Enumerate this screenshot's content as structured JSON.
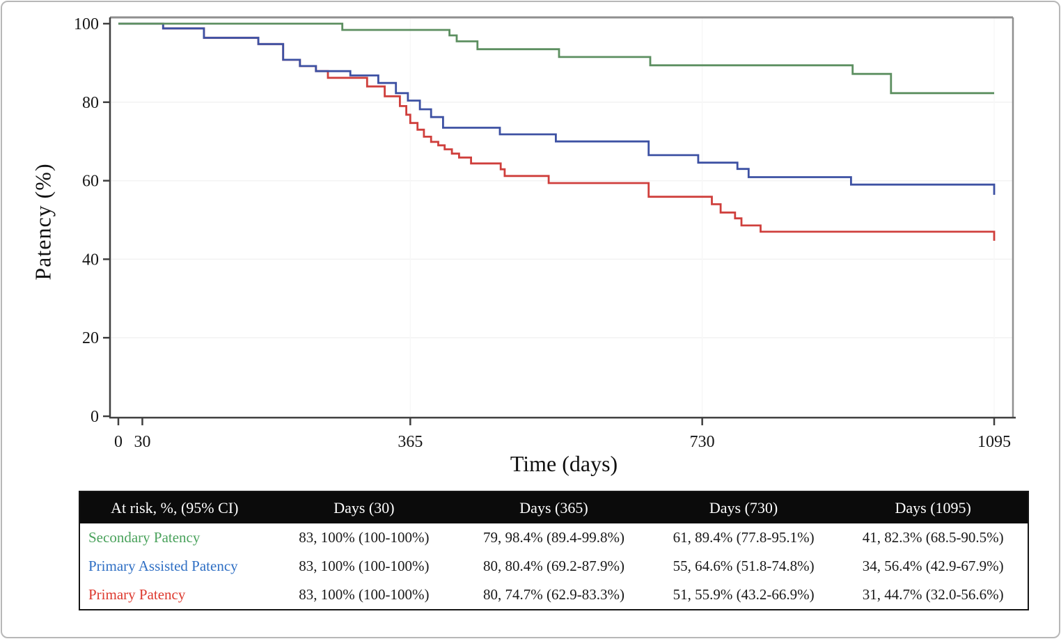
{
  "chart_data": {
    "type": "line",
    "subtype": "kaplan-meier-step",
    "title": "",
    "xlabel": "Time (days)",
    "ylabel": "Patency (%)",
    "xlim": [
      0,
      1095
    ],
    "ylim": [
      0,
      100
    ],
    "x_ticks": [
      0,
      30,
      365,
      730,
      1095
    ],
    "y_ticks": [
      0,
      20,
      40,
      60,
      80,
      100
    ],
    "grid": "none",
    "legend_position": "in-risk-table-below",
    "series": [
      {
        "name": "Secondary Patency",
        "color": "#5c8f60",
        "points": [
          [
            0,
            100
          ],
          [
            280,
            98.4
          ],
          [
            414,
            97.0
          ],
          [
            423,
            95.5
          ],
          [
            449,
            93.5
          ],
          [
            551,
            91.5
          ],
          [
            665,
            89.4
          ],
          [
            918,
            87.2
          ],
          [
            966,
            82.3
          ],
          [
            1095,
            82.3
          ]
        ]
      },
      {
        "name": "Primary Assisted Patency",
        "color": "#3d51a3",
        "points": [
          [
            0,
            100
          ],
          [
            56,
            98.8
          ],
          [
            107,
            96.4
          ],
          [
            175,
            94.8
          ],
          [
            206,
            90.8
          ],
          [
            227,
            89.2
          ],
          [
            247,
            87.9
          ],
          [
            290,
            86.8
          ],
          [
            325,
            84.9
          ],
          [
            347,
            82.3
          ],
          [
            362,
            80.4
          ],
          [
            377,
            78.2
          ],
          [
            391,
            76.2
          ],
          [
            406,
            73.5
          ],
          [
            477,
            71.8
          ],
          [
            547,
            70.0
          ],
          [
            663,
            66.5
          ],
          [
            725,
            64.6
          ],
          [
            774,
            63.0
          ],
          [
            788,
            60.9
          ],
          [
            916,
            59.0
          ],
          [
            1095,
            56.4
          ]
        ]
      },
      {
        "name": "Primary Patency",
        "color": "#cf3f3c",
        "points": [
          [
            0,
            100
          ],
          [
            56,
            98.8
          ],
          [
            107,
            96.4
          ],
          [
            175,
            94.8
          ],
          [
            206,
            90.8
          ],
          [
            227,
            89.2
          ],
          [
            247,
            87.9
          ],
          [
            262,
            86.2
          ],
          [
            311,
            84.0
          ],
          [
            333,
            81.5
          ],
          [
            352,
            79.0
          ],
          [
            360,
            76.8
          ],
          [
            365,
            74.7
          ],
          [
            374,
            73.0
          ],
          [
            382,
            71.2
          ],
          [
            391,
            69.9
          ],
          [
            400,
            69.0
          ],
          [
            408,
            68.0
          ],
          [
            417,
            66.9
          ],
          [
            426,
            65.9
          ],
          [
            441,
            64.4
          ],
          [
            478,
            62.9
          ],
          [
            483,
            61.2
          ],
          [
            538,
            59.4
          ],
          [
            663,
            55.9
          ],
          [
            742,
            54.0
          ],
          [
            753,
            51.9
          ],
          [
            771,
            50.4
          ],
          [
            779,
            48.6
          ],
          [
            803,
            47.0
          ],
          [
            1095,
            44.7
          ]
        ]
      }
    ]
  },
  "risk_table": {
    "header": [
      "At risk, %, (95% CI)",
      "Days (30)",
      "Days (365)",
      "Days (730)",
      "Days (1095)"
    ],
    "rows": [
      {
        "label": "Secondary Patency",
        "label_color": "#4aa25c",
        "values": [
          "83, 100% (100-100%)",
          "79, 98.4% (89.4-99.8%)",
          "61, 89.4% (77.8-95.1%)",
          "41, 82.3% (68.5-90.5%)"
        ]
      },
      {
        "label": "Primary Assisted Patency",
        "label_color": "#2f6fc4",
        "values": [
          "83, 100% (100-100%)",
          "80, 80.4% (69.2-87.9%)",
          "55, 64.6% (51.8-74.8%)",
          "34, 56.4% (42.9-67.9%)"
        ]
      },
      {
        "label": "Primary Patency",
        "label_color": "#dd392e",
        "values": [
          "83, 100% (100-100%)",
          "80, 74.7% (62.9-83.3%)",
          "51, 55.9% (43.2-66.9%)",
          "31, 44.7% (32.0-56.6%)"
        ]
      }
    ]
  },
  "colors": {
    "spine_dark": "#3f3f3f",
    "spine_gray": "#8f8f8f",
    "gridline": "#f2f2f2",
    "header_bg": "#0b0b0b",
    "header_text": "#ffffff"
  }
}
